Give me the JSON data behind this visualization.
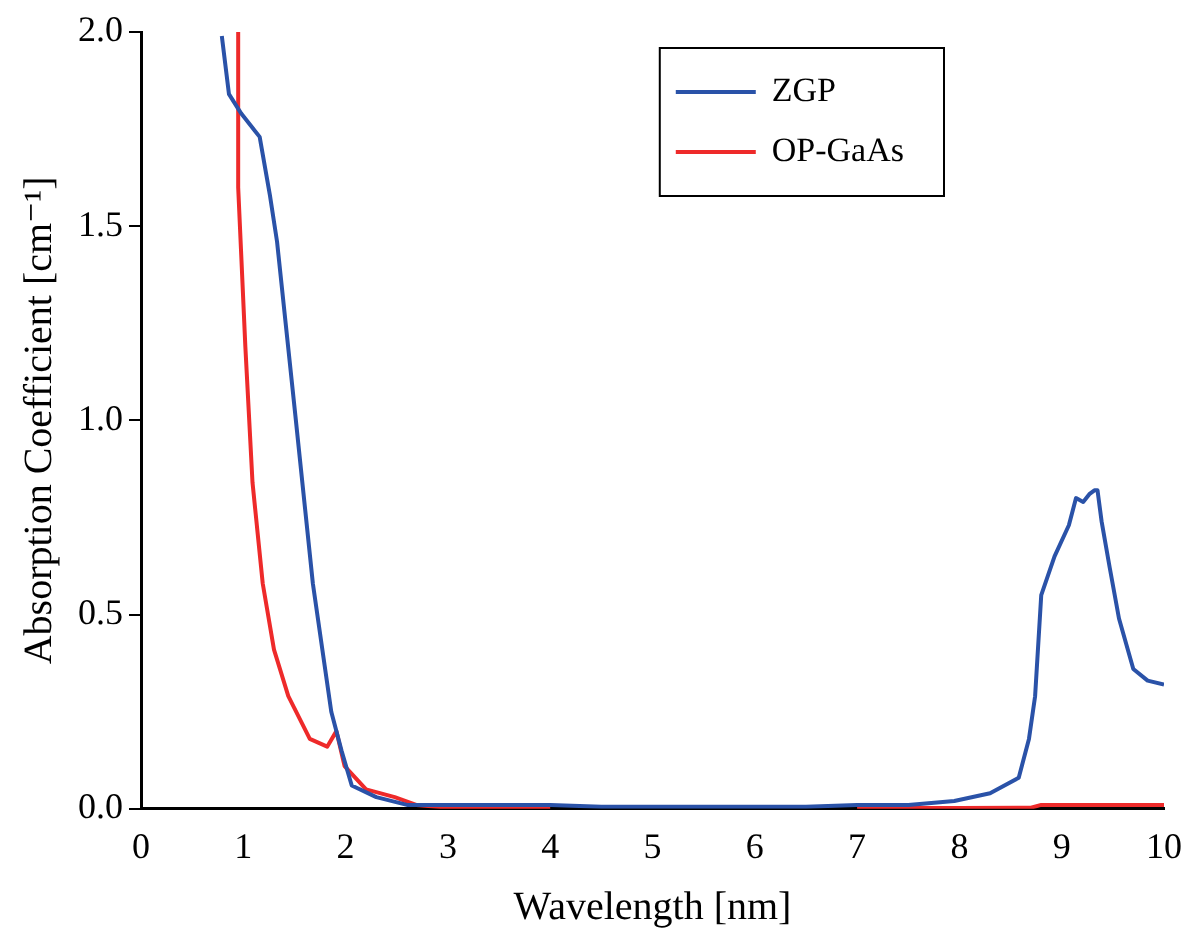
{
  "chart_data": {
    "type": "line",
    "xlabel": "Wavelength [nm]",
    "ylabel": "Absorption Coefficient [cm⁻¹]",
    "xlim": [
      0,
      10
    ],
    "xticks": [
      0,
      1,
      2,
      3,
      4,
      5,
      6,
      7,
      8,
      9,
      10
    ],
    "ylim": [
      0,
      2
    ],
    "yticks": [
      {
        "value": 0,
        "label": "0.0"
      },
      {
        "value": 0.5,
        "label": "0.5"
      },
      {
        "value": 1,
        "label": "1.0"
      },
      {
        "value": 1.5,
        "label": "1.5"
      },
      {
        "value": 2,
        "label": "2.0"
      }
    ],
    "grid": false,
    "legend": "top right",
    "marker": "none",
    "line_style": "solid",
    "series": [
      {
        "name": "ZGP",
        "color": "#2a52a8",
        "x": [
          0.79,
          0.86,
          0.98,
          1.16,
          1.26,
          1.33,
          1.51,
          1.68,
          1.86,
          1.96,
          2.06,
          2.3,
          2.6,
          3,
          3.5,
          4,
          4.5,
          5,
          5.5,
          6,
          6.5,
          7,
          7.5,
          7.95,
          8.3,
          8.58,
          8.68,
          8.74,
          8.8,
          8.93,
          9.07,
          9.14,
          9.21,
          9.27,
          9.32,
          9.35,
          9.39,
          9.47,
          9.56,
          9.7,
          9.84,
          10
        ],
        "values": [
          1.99,
          1.84,
          1.79,
          1.73,
          1.58,
          1.46,
          1.01,
          0.58,
          0.25,
          0.15,
          0.06,
          0.03,
          0.01,
          0.01,
          0.01,
          0.01,
          0.005,
          0.005,
          0.005,
          0.005,
          0.005,
          0.01,
          0.01,
          0.02,
          0.04,
          0.08,
          0.18,
          0.29,
          0.55,
          0.65,
          0.73,
          0.8,
          0.79,
          0.81,
          0.82,
          0.82,
          0.74,
          0.62,
          0.49,
          0.36,
          0.33,
          0.32
        ]
      },
      {
        "name": "OP-GaAs",
        "color": "#ee2a2a",
        "x": [
          0.95,
          0.95,
          1.02,
          1.09,
          1.19,
          1.3,
          1.44,
          1.65,
          1.82,
          1.91,
          1.99,
          2.2,
          2.48,
          2.69,
          3,
          4,
          5,
          6,
          7,
          8,
          8.7,
          8.8,
          9.5,
          10
        ],
        "values": [
          2.0,
          1.6,
          1.19,
          0.84,
          0.58,
          0.41,
          0.29,
          0.18,
          0.16,
          0.2,
          0.11,
          0.05,
          0.03,
          0.01,
          0.003,
          0.002,
          null,
          null,
          0.002,
          0.002,
          0.003,
          0.01,
          0.01,
          0.01
        ]
      }
    ]
  }
}
